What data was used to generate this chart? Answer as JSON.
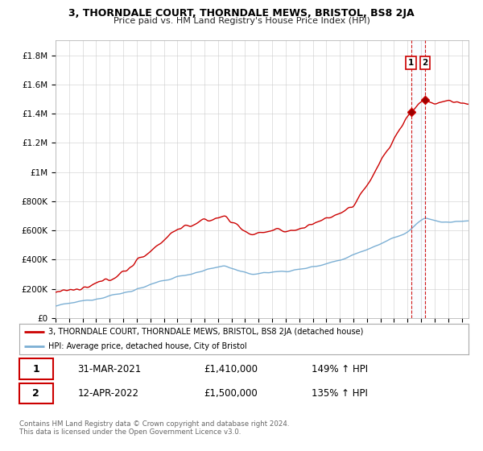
{
  "title": "3, THORNDALE COURT, THORNDALE MEWS, BRISTOL, BS8 2JA",
  "subtitle": "Price paid vs. HM Land Registry's House Price Index (HPI)",
  "ylim": [
    0,
    1900000
  ],
  "yticks": [
    0,
    200000,
    400000,
    600000,
    800000,
    1000000,
    1200000,
    1400000,
    1600000,
    1800000
  ],
  "ytick_labels": [
    "£0",
    "£200K",
    "£400K",
    "£600K",
    "£800K",
    "£1M",
    "£1.2M",
    "£1.4M",
    "£1.6M",
    "£1.8M"
  ],
  "line1_color": "#cc0000",
  "line2_color": "#7bafd4",
  "t1_x": 2021.25,
  "t1_y": 1410000,
  "t2_x": 2022.28,
  "t2_y": 1500000,
  "vline_color": "#cc0000",
  "shade_color": "#ddeeff",
  "legend1_label": "3, THORNDALE COURT, THORNDALE MEWS, BRISTOL, BS8 2JA (detached house)",
  "legend2_label": "HPI: Average price, detached house, City of Bristol",
  "footer": "Contains HM Land Registry data © Crown copyright and database right 2024.\nThis data is licensed under the Open Government Licence v3.0.",
  "background_color": "#ffffff",
  "grid_color": "#cccccc",
  "xlim_left": 1995,
  "xlim_right": 2025.5
}
